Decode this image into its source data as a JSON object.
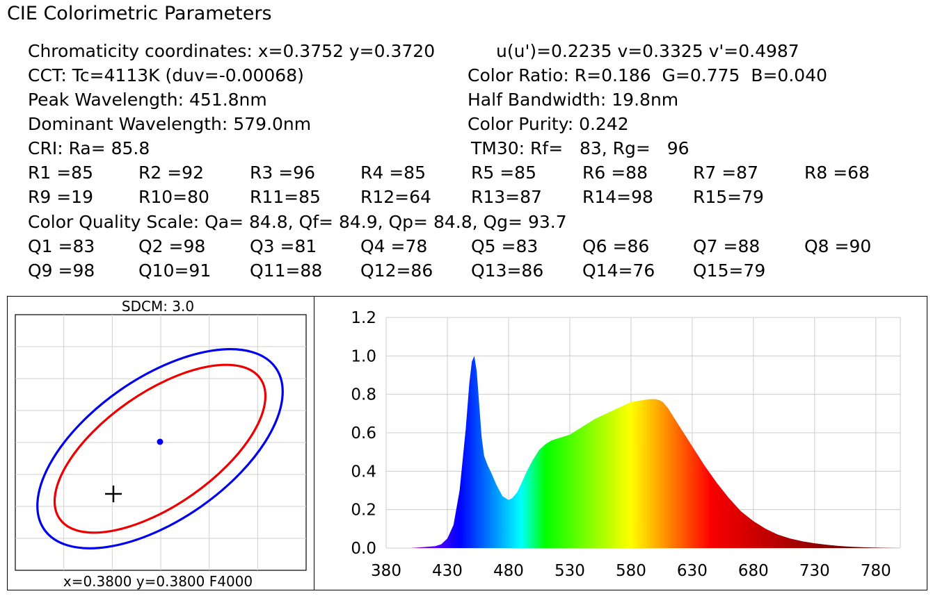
{
  "title": "CIE Colorimetric Parameters",
  "params": {
    "chromaticity": "Chromaticity coordinates: x=0.3752 y=0.3720",
    "uv": "u(u')=0.2235 v=0.3325 v'=0.4987",
    "cct": "CCT: Tc=4113K (duv=-0.00068)",
    "color_ratio": "Color Ratio: R=0.186  G=0.775  B=0.040",
    "peak": "Peak Wavelength: 451.8nm",
    "half_bw": "Half Bandwidth: 19.8nm",
    "dominant": "Dominant Wavelength: 579.0nm",
    "purity": "Color Purity: 0.242",
    "cri": "CRI: Ra= 85.8",
    "tm30": "TM30: Rf=   83, Rg=   96",
    "r_values_row1": [
      "R1 =85",
      "R2 =92",
      "R3 =96",
      "R4 =85",
      "R5 =85",
      "R6 =88",
      "R7 =87",
      "R8 =68"
    ],
    "r_values_row2": [
      "R9 =19",
      "R10=80",
      "R11=85",
      "R12=64",
      "R13=87",
      "R14=98",
      "R15=79"
    ],
    "cqs": "Color Quality Scale: Qa= 84.8, Qf= 84.9, Qp= 84.8, Qg= 93.7",
    "q_values_row1": [
      "Q1 =83",
      "Q2 =98",
      "Q3 =81",
      "Q4 =78",
      "Q5 =83",
      "Q6 =86",
      "Q7 =88",
      "Q8 =90"
    ],
    "q_values_row2": [
      "Q9 =98",
      "Q10=91",
      "Q11=88",
      "Q12=86",
      "Q13=86",
      "Q14=76",
      "Q15=79"
    ]
  },
  "sdcm": {
    "header": "SDCM:   3.0",
    "footer": "x=0.3800 y=0.3800 F4000",
    "outer_ellipse_color": "#0000ee",
    "inner_ellipse_color": "#ee0000",
    "point_color": "#0000ee"
  },
  "chart_data": {
    "type": "area",
    "title": "",
    "xlabel": "",
    "ylabel": "",
    "xlim": [
      380,
      800
    ],
    "ylim": [
      0,
      1.2
    ],
    "x_ticks": [
      "380",
      "430",
      "480",
      "530",
      "580",
      "630",
      "680",
      "730",
      "780"
    ],
    "y_ticks": [
      "0.0",
      "0.2",
      "0.4",
      "0.6",
      "0.8",
      "1.0",
      "1.2"
    ],
    "grid": true,
    "series": [
      {
        "x": [
          380,
          400,
          420,
          425,
          430,
          435,
          440,
          445,
          448,
          450,
          452,
          454,
          456,
          458,
          460,
          463,
          466,
          470,
          475,
          480,
          483,
          487,
          490,
          495,
          500,
          505,
          510,
          515,
          520,
          525,
          530,
          535,
          540,
          545,
          550,
          560,
          570,
          580,
          590,
          595,
          600,
          603,
          606,
          610,
          615,
          620,
          630,
          640,
          650,
          660,
          670,
          680,
          690,
          700,
          710,
          720,
          730,
          740,
          750,
          760,
          770,
          780,
          790,
          800
        ],
        "values": [
          0.0,
          0.0,
          0.01,
          0.02,
          0.05,
          0.12,
          0.3,
          0.62,
          0.86,
          0.97,
          1.0,
          0.92,
          0.75,
          0.58,
          0.48,
          0.43,
          0.39,
          0.33,
          0.27,
          0.25,
          0.26,
          0.29,
          0.33,
          0.4,
          0.46,
          0.51,
          0.54,
          0.56,
          0.57,
          0.58,
          0.59,
          0.61,
          0.63,
          0.65,
          0.67,
          0.7,
          0.73,
          0.76,
          0.77,
          0.775,
          0.775,
          0.77,
          0.76,
          0.73,
          0.68,
          0.63,
          0.53,
          0.43,
          0.34,
          0.26,
          0.19,
          0.14,
          0.1,
          0.07,
          0.05,
          0.035,
          0.025,
          0.017,
          0.011,
          0.007,
          0.004,
          0.002,
          0.001,
          0.0
        ]
      }
    ]
  }
}
